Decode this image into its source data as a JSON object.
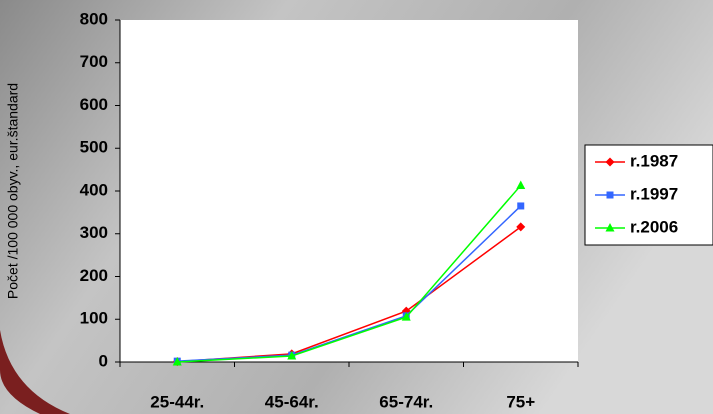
{
  "chart_data": {
    "type": "line",
    "y_label": "Počet /100 000 obyv., eur.štandard",
    "categories": [
      "25-44r.",
      "45-64r.",
      "65-74r.",
      "75+"
    ],
    "series": [
      {
        "name": "r.1987",
        "color": "#ff0000",
        "marker": "diamond",
        "values": [
          1,
          19,
          119,
          316
        ]
      },
      {
        "name": "r.1997",
        "color": "#3366ff",
        "marker": "square",
        "values": [
          2,
          16,
          108,
          365
        ]
      },
      {
        "name": "r.2006",
        "color": "#00ff00",
        "marker": "triangle",
        "values": [
          0,
          14,
          105,
          413
        ]
      }
    ],
    "ylim": [
      0,
      800
    ],
    "yticks": [
      0,
      100,
      200,
      300,
      400,
      500,
      600,
      700,
      800
    ],
    "grid": false,
    "legend": "right"
  }
}
